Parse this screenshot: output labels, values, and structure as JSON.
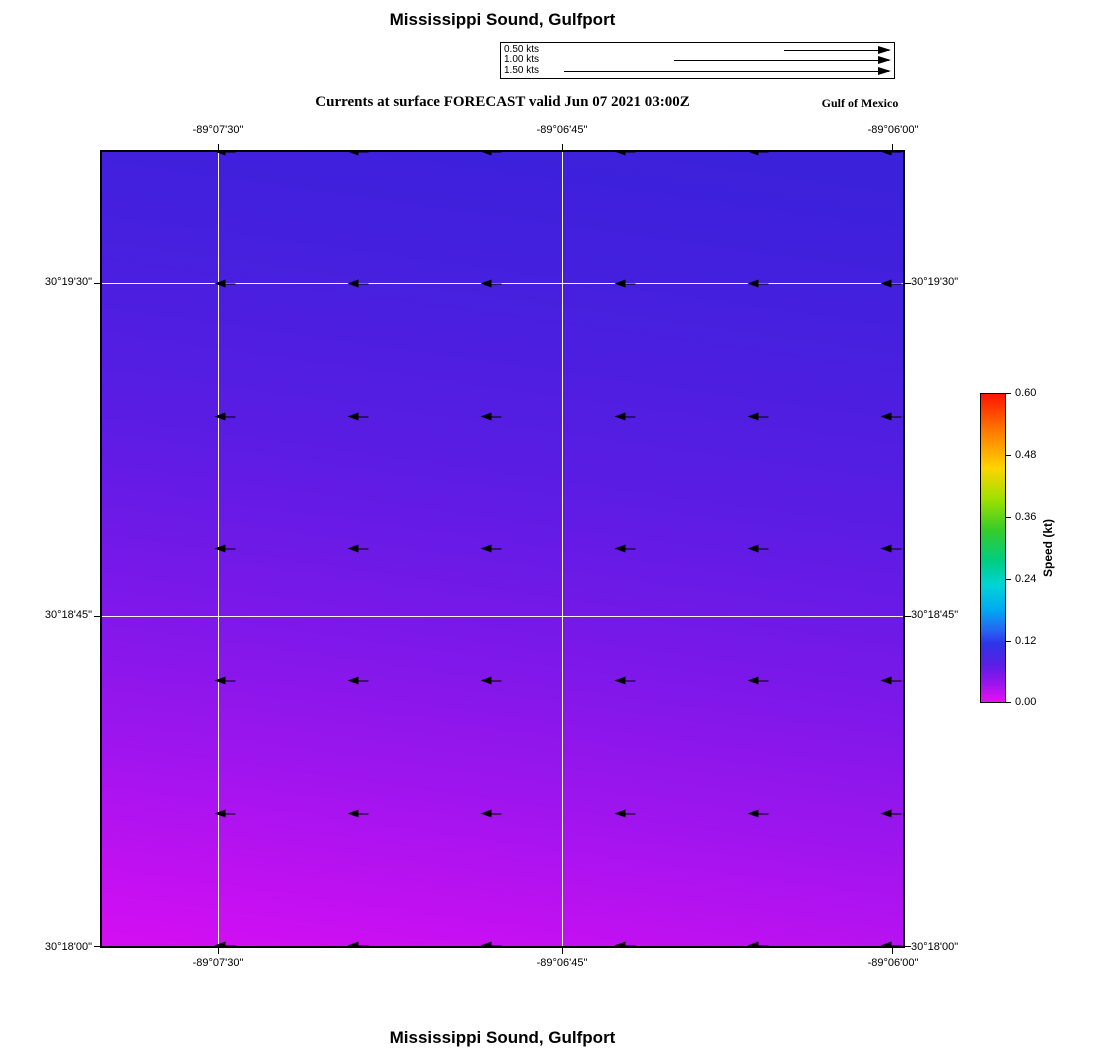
{
  "titles": {
    "top": "Mississippi Sound, Gulfport",
    "bottom": "Mississippi Sound, Gulfport"
  },
  "header": {
    "subtitle": "Currents at surface FORECAST valid Jun 07 2021 03:00Z",
    "region_label": "Gulf of Mexico"
  },
  "legend": {
    "items": [
      {
        "label": "0.50 kts",
        "speed_kts": 0.5
      },
      {
        "label": "1.00 kts",
        "speed_kts": 1.0
      },
      {
        "label": "1.50 kts",
        "speed_kts": 1.5
      }
    ]
  },
  "axes": {
    "lon_ticks": [
      "-89°07'30\"",
      "-89°06'45\"",
      "-89°06'00\""
    ],
    "lat_ticks": [
      "30°19'30\"",
      "30°18'45\"",
      "30°18'00\""
    ]
  },
  "colorbar": {
    "label": "Speed (kt)",
    "tick_labels": [
      "0.60",
      "0.48",
      "0.36",
      "0.24",
      "0.12",
      "0.00"
    ]
  },
  "colors": {
    "speed_high_north": "#3a21da",
    "speed_low_south": "#d50ef3",
    "colorbar_top": "#ff1400",
    "colorbar_bottom": "#e90ff0",
    "gridline": "#fffff0",
    "arrow": "#000000"
  },
  "chart_data": {
    "type": "heatmap",
    "title": "Mississippi Sound, Gulfport",
    "subtitle": "Currents at surface FORECAST valid Jun 07 2021 03:00Z",
    "region": "Gulf of Mexico",
    "x_axis": {
      "name": "Longitude",
      "tick_labels": [
        "-89°07'30\"",
        "-89°06'45\"",
        "-89°06'00\""
      ]
    },
    "y_axis": {
      "name": "Latitude",
      "tick_labels": [
        "30°19'30\"",
        "30°18'45\"",
        "30°18'00\""
      ]
    },
    "colorbar": {
      "label": "Speed (kt)",
      "range": [
        0.0,
        0.6
      ],
      "tick_values": [
        0.6,
        0.48,
        0.36,
        0.24,
        0.12,
        0.0
      ]
    },
    "field_description": "Surface current speed: ~0.10-0.14 kt (blue) along the northern edge grading smoothly to ~0.00-0.03 kt (magenta) along the southern edge, slightly lower speeds toward the southwest corner",
    "vector_field": {
      "direction": "westward (all arrows point left)",
      "grid": {
        "cols": 6,
        "rows": 7
      },
      "approx_speed_kts": "0.03-0.10"
    },
    "scale_arrows_kts": [
      0.5,
      1.0,
      1.5
    ]
  }
}
